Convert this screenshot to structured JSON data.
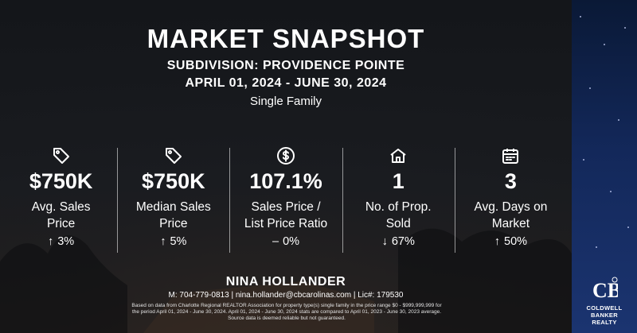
{
  "header": {
    "title": "MARKET SNAPSHOT",
    "subdivision": "SUBDIVISION: PROVIDENCE POINTE",
    "date_range": "APRIL 01, 2024 - JUNE 30, 2024",
    "property_type": "Single Family"
  },
  "stats": [
    {
      "icon": "tag-icon",
      "value": "$750K",
      "label_line1": "Avg. Sales",
      "label_line2": "Price",
      "change_arrow": "↑",
      "change": "3%"
    },
    {
      "icon": "tag-icon",
      "value": "$750K",
      "label_line1": "Median Sales",
      "label_line2": "Price",
      "change_arrow": "↑",
      "change": "5%"
    },
    {
      "icon": "dollar-circle-icon",
      "value": "107.1%",
      "label_line1": "Sales Price /",
      "label_line2": "List Price Ratio",
      "change_arrow": "–",
      "change": "0%"
    },
    {
      "icon": "home-icon",
      "value": "1",
      "label_line1": "No. of Prop.",
      "label_line2": "Sold",
      "change_arrow": "↓",
      "change": "67%"
    },
    {
      "icon": "calendar-icon",
      "value": "3",
      "label_line1": "Avg. Days on",
      "label_line2": "Market",
      "change_arrow": "↑",
      "change": "50%"
    }
  ],
  "agent": {
    "name": "NINA HOLLANDER",
    "contact": "M: 704-779-0813 | nina.hollander@cbcarolinas.com | Lic#: 179530"
  },
  "disclaimer": {
    "line1": "Based on data from Charlotte Regional REALTOR Association for property type(s) single family in the price range $0 - $999,999,999 for",
    "line2": "the period April 01, 2024 - June 30, 2024. April 01, 2024 - June 30, 2024 stats are compared to April 01, 2023 - June 30, 2023 average.",
    "line3": "Source data is deemed reliable but not guaranteed."
  },
  "logo": {
    "line1": "COLDWELL",
    "line2": "BANKER",
    "line3": "REALTY"
  }
}
